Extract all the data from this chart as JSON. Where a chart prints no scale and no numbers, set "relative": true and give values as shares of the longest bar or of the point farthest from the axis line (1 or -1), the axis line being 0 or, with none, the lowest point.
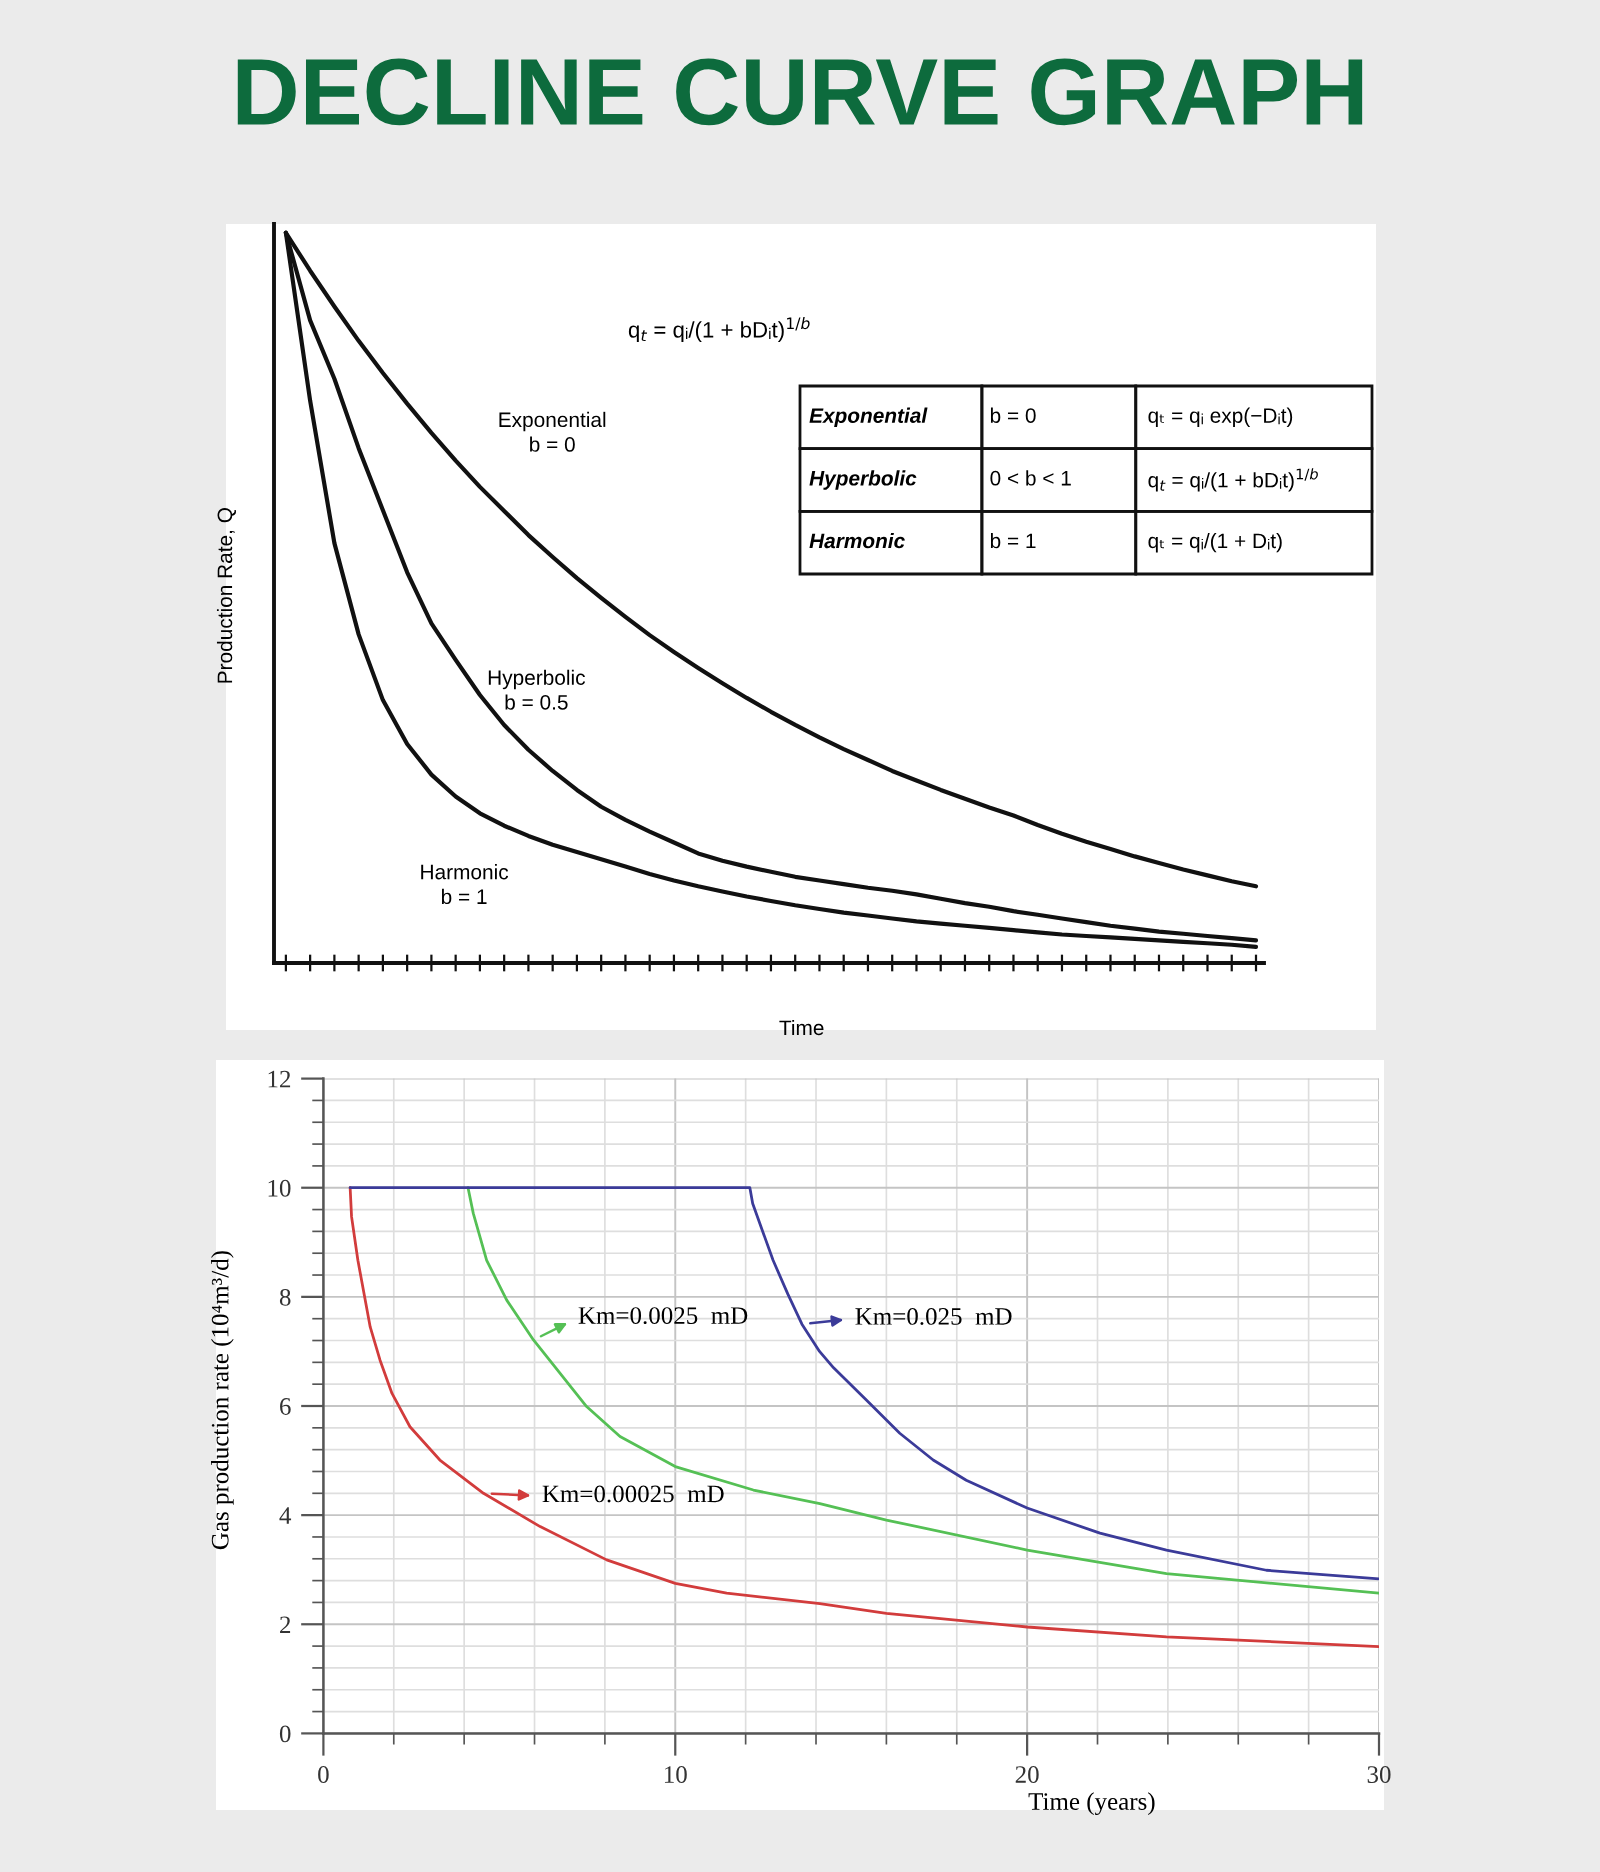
{
  "chart_data": [
    {
      "type": "line",
      "title": "DECLINE CURVE GRAPH",
      "xlabel": "Time",
      "ylabel": "Production Rate, Q",
      "annotations": [
        "q$_{t}$ = qᵢ/(1 + bDᵢt)$^{1/b}$"
      ],
      "relative": true,
      "categories": [
        null,
        null,
        null,
        null,
        null,
        null,
        null,
        null,
        null,
        null,
        null,
        null,
        null,
        null,
        null,
        null,
        null,
        null,
        null,
        null,
        null,
        null,
        null,
        null,
        null,
        null,
        null,
        null,
        null,
        null,
        null,
        null,
        null,
        null,
        null,
        null,
        null,
        null,
        null,
        null,
        null
      ],
      "series": [
        {
          "name": "Exponential\nb = 0",
          "color": "#111111",
          "values": [
            1.0,
            0.948,
            0.899,
            0.852,
            0.808,
            0.766,
            0.726,
            0.688,
            0.652,
            0.619,
            0.586,
            0.556,
            0.527,
            0.5,
            0.474,
            0.449,
            0.426,
            0.404,
            0.383,
            0.363,
            0.344,
            0.326,
            0.309,
            0.293,
            0.278,
            0.263,
            0.25,
            0.237,
            0.225,
            0.213,
            0.202,
            0.189,
            0.177,
            0.166,
            0.156,
            0.146,
            0.137,
            0.128,
            0.12,
            0.112,
            0.105
          ]
        },
        {
          "name": "Hyperbolic\nb = 0.5",
          "color": "#111111",
          "values": [
            1.0,
            0.88,
            0.8,
            0.705,
            0.62,
            0.535,
            0.465,
            0.415,
            0.367,
            0.326,
            0.292,
            0.263,
            0.237,
            0.214,
            0.196,
            0.18,
            0.165,
            0.15,
            0.14,
            0.132,
            0.125,
            0.118,
            0.113,
            0.108,
            0.103,
            0.099,
            0.094,
            0.088,
            0.082,
            0.077,
            0.071,
            0.066,
            0.061,
            0.056,
            0.051,
            0.047,
            0.043,
            0.04,
            0.037,
            0.034,
            0.031
          ]
        },
        {
          "name": "Harmonic\nb = 1",
          "color": "#111111",
          "values": [
            1.0,
            0.77,
            0.575,
            0.45,
            0.36,
            0.3,
            0.258,
            0.228,
            0.205,
            0.188,
            0.174,
            0.162,
            0.152,
            0.142,
            0.132,
            0.122,
            0.113,
            0.105,
            0.098,
            0.091,
            0.085,
            0.079,
            0.074,
            0.069,
            0.065,
            0.061,
            0.057,
            0.054,
            0.051,
            0.048,
            0.045,
            0.042,
            0.039,
            0.037,
            0.035,
            0.033,
            0.031,
            0.029,
            0.027,
            0.025,
            0.022
          ]
        }
      ]
    },
    {
      "type": "other",
      "annotations": [
        "Exponential",
        "b = 0",
        "qₜ = qᵢ exp(−Dᵢt)",
        "Hyperbolic",
        "0 < b < 1",
        "q$_{t}$ = qᵢ/(1 + bDᵢt)$^{1/b}$",
        "Harmonic",
        "b = 1",
        "qₜ = qᵢ/(1 + Dᵢt)"
      ]
    },
    {
      "type": "line",
      "xlabel": "Time (years)",
      "ylabel": "Gas production rate (10⁴m³/d)",
      "xlim": [
        0,
        30
      ],
      "ylim": [
        0,
        12
      ],
      "xticks": [
        0,
        {
          "value": 2,
          "label": null
        },
        {
          "value": 4,
          "label": null
        },
        {
          "value": 6,
          "label": null
        },
        {
          "value": 8,
          "label": null
        },
        10,
        {
          "value": 12,
          "label": null
        },
        {
          "value": 14,
          "label": null
        },
        {
          "value": 16,
          "label": null
        },
        {
          "value": 18,
          "label": null
        },
        20,
        {
          "value": 22,
          "label": null
        },
        {
          "value": 24,
          "label": null
        },
        {
          "value": 26,
          "label": null
        },
        {
          "value": 28,
          "label": null
        },
        30
      ],
      "yticks": [
        0,
        {
          "value": 0.4,
          "label": null
        },
        {
          "value": 0.8,
          "label": null
        },
        {
          "value": 1.2,
          "label": null
        },
        {
          "value": 1.6,
          "label": null
        },
        2,
        {
          "value": 2.4,
          "label": null
        },
        {
          "value": 2.8,
          "label": null
        },
        {
          "value": 3.2,
          "label": null
        },
        {
          "value": 3.6,
          "label": null
        },
        4,
        {
          "value": 4.4,
          "label": null
        },
        {
          "value": 4.8,
          "label": null
        },
        {
          "value": 5.2,
          "label": null
        },
        {
          "value": 5.6,
          "label": null
        },
        6,
        {
          "value": 6.4,
          "label": null
        },
        {
          "value": 6.8,
          "label": null
        },
        {
          "value": 7.2,
          "label": null
        },
        {
          "value": 7.6,
          "label": null
        },
        8,
        {
          "value": 8.4,
          "label": null
        },
        {
          "value": 8.8,
          "label": null
        },
        {
          "value": 9.2,
          "label": null
        },
        {
          "value": 9.6,
          "label": null
        },
        10,
        {
          "value": 10.4,
          "label": null
        },
        {
          "value": 10.8,
          "label": null
        },
        {
          "value": 11.2,
          "label": null
        },
        {
          "value": 11.6,
          "label": null
        },
        12
      ],
      "grid": true,
      "legend": "center",
      "series": [
        {
          "name": "Km=0.00025  mD",
          "color": "#d23c3c",
          "x": [
            0.76,
            0.8,
            0.98,
            1.33,
            1.61,
            1.95,
            2.46,
            3.31,
            4.55,
            6.16,
            8.05,
            10.0,
            11.46,
            14.11,
            16.0,
            20.0,
            23.96,
            30.0
          ],
          "values": [
            10.0,
            9.47,
            8.67,
            7.45,
            6.84,
            6.23,
            5.62,
            5.01,
            4.4,
            3.79,
            3.18,
            2.75,
            2.57,
            2.38,
            2.2,
            1.95,
            1.77,
            1.59
          ]
        },
        {
          "name": "Km=0.0025  mD",
          "color": "#55c055",
          "x": [
            4.11,
            4.26,
            4.64,
            5.21,
            5.97,
            7.48,
            8.43,
            10.0,
            12.22,
            14.11,
            16.0,
            20.0,
            23.96,
            30.0
          ],
          "values": [
            10.0,
            9.53,
            8.67,
            7.94,
            7.21,
            5.99,
            5.44,
            4.89,
            4.46,
            4.21,
            3.91,
            3.36,
            2.93,
            2.57
          ]
        },
        {
          "name": "Km=0.025  mD",
          "color": "#3b3b99",
          "x": [
            0.76,
            12.12,
            12.2,
            12.78,
            13.2,
            13.6,
            14.1,
            14.5,
            15.43,
            16.38,
            17.33,
            18.27,
            20.0,
            22.07,
            23.96,
            26.8,
            30.0
          ],
          "values": [
            10.0,
            10.0,
            9.71,
            8.67,
            8.05,
            7.5,
            7.0,
            6.7,
            6.11,
            5.5,
            5.01,
            4.64,
            4.13,
            3.67,
            3.36,
            2.99,
            2.83
          ]
        }
      ]
    }
  ]
}
